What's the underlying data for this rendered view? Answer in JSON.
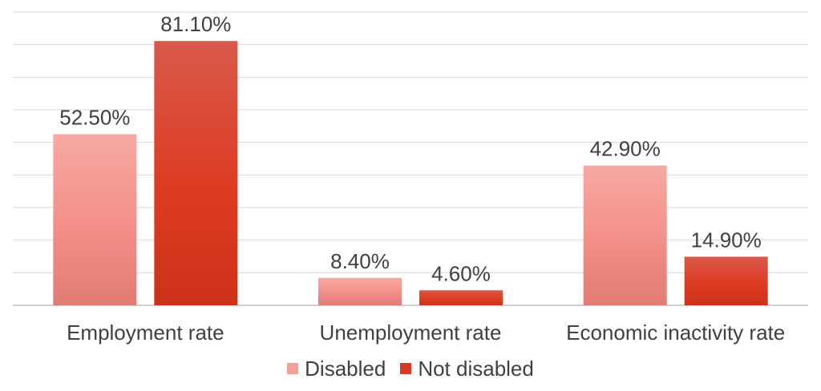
{
  "chart_data": {
    "type": "bar",
    "title": "",
    "xlabel": "",
    "ylabel": "",
    "ylim": [
      0,
      90
    ],
    "grid": true,
    "legend_position": "bottom",
    "categories": [
      "Employment rate",
      "Unemployment rate",
      "Economic inactivity rate"
    ],
    "series": [
      {
        "name": "Disabled",
        "values": [
          52.5,
          8.4,
          42.9
        ],
        "labels": [
          "52.50%",
          "8.40%",
          "42.90%"
        ],
        "color": "#f4a19a"
      },
      {
        "name": "Not disabled",
        "values": [
          81.1,
          4.6,
          14.9
        ],
        "labels": [
          "81.10%",
          "4.60%",
          "14.90%"
        ],
        "color": "#d63a22"
      }
    ]
  }
}
